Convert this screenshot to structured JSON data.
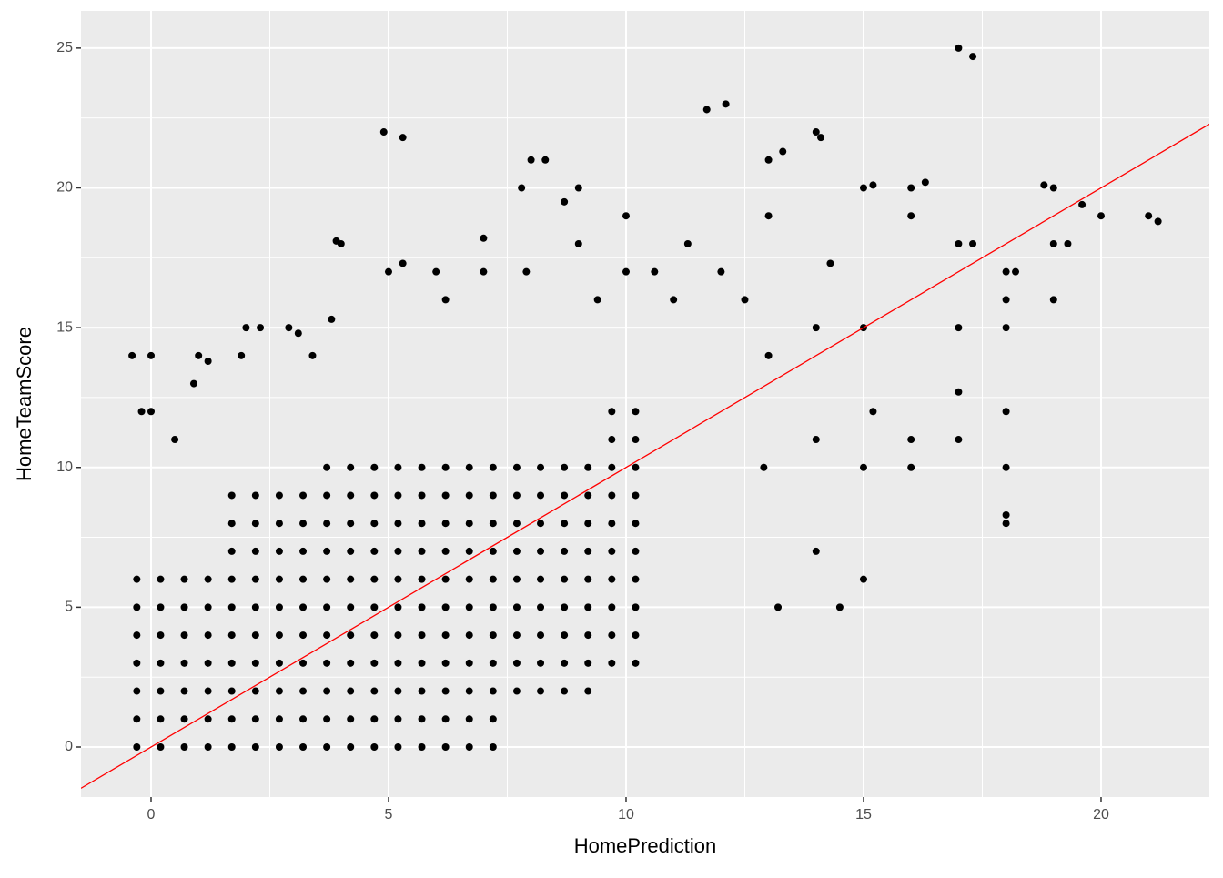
{
  "chart_data": {
    "type": "scatter",
    "x_label": "HomePrediction",
    "y_label": "HomeTeamScore",
    "xlim": [
      -1.475,
      22.28
    ],
    "ylim": [
      -1.79,
      26.33
    ],
    "xticks": [
      0,
      5,
      10,
      15,
      20
    ],
    "yticks": [
      0,
      5,
      10,
      15,
      20,
      25
    ],
    "x_minor_ticks": [
      2.5,
      7.5,
      12.5,
      17.5
    ],
    "y_minor_ticks": [
      2.5,
      7.5,
      12.5,
      17.5,
      22.5
    ],
    "grid": true,
    "color": "#000000",
    "reference_line": {
      "slope": 1,
      "intercept": 0,
      "color": "#ff0000"
    },
    "x": [
      -0.3,
      0.2,
      -0.3,
      0.2,
      -0.3,
      0.2,
      -0.3,
      0.2,
      -0.3,
      0.2,
      -0.3,
      0.2,
      -0.3,
      0.2,
      0.7,
      1.2,
      0.7,
      1.2,
      0.7,
      1.2,
      0.7,
      1.2,
      0.7,
      1.2,
      0.7,
      1.2,
      0.7,
      1.2,
      1.7,
      2.2,
      1.7,
      2.2,
      1.7,
      2.2,
      1.7,
      2.2,
      1.7,
      2.2,
      1.7,
      2.2,
      1.7,
      2.2,
      1.7,
      2.2,
      1.7,
      2.2,
      1.7,
      2.2,
      2.7,
      3.2,
      2.7,
      3.2,
      2.7,
      3.2,
      2.7,
      3.2,
      2.7,
      3.2,
      2.7,
      3.2,
      2.7,
      3.2,
      2.7,
      3.2,
      2.7,
      3.2,
      2.7,
      3.2,
      3.7,
      4.2,
      3.7,
      4.2,
      3.7,
      4.2,
      3.7,
      4.2,
      3.7,
      4.2,
      3.7,
      4.2,
      3.7,
      4.2,
      3.7,
      4.2,
      3.7,
      4.2,
      3.7,
      4.2,
      3.7,
      4.2,
      4.7,
      5.2,
      4.7,
      5.2,
      4.7,
      5.2,
      4.7,
      5.2,
      4.7,
      5.2,
      4.7,
      5.2,
      4.7,
      5.2,
      4.7,
      5.2,
      4.7,
      5.2,
      4.7,
      5.2,
      4.7,
      5.2,
      5.7,
      6.2,
      5.7,
      6.2,
      5.7,
      6.2,
      5.7,
      6.2,
      5.7,
      6.2,
      5.7,
      6.2,
      5.7,
      6.2,
      5.7,
      6.2,
      5.7,
      6.2,
      5.7,
      6.2,
      5.7,
      6.2,
      6.7,
      7.2,
      6.7,
      7.2,
      6.7,
      7.2,
      6.7,
      7.2,
      6.7,
      7.2,
      6.7,
      7.2,
      6.7,
      7.2,
      6.7,
      7.2,
      6.7,
      7.2,
      6.7,
      7.2,
      6.7,
      7.2,
      7.7,
      8.2,
      7.7,
      8.2,
      7.7,
      8.2,
      7.7,
      8.2,
      7.7,
      8.2,
      7.7,
      8.2,
      7.7,
      8.2,
      7.7,
      8.2,
      7.7,
      8.2,
      8.7,
      9.2,
      8.7,
      9.2,
      8.7,
      9.2,
      8.7,
      9.2,
      8.7,
      9.2,
      8.7,
      9.2,
      8.7,
      9.2,
      8.7,
      9.2,
      8.7,
      9.2,
      9.7,
      10.2,
      9.7,
      10.2,
      9.7,
      10.2,
      9.7,
      10.2,
      9.7,
      10.2,
      9.7,
      10.2,
      9.7,
      10.2,
      9.7,
      10.2,
      9.7,
      10.2,
      9.7,
      10.2,
      -0.4,
      0,
      -0.2,
      0,
      0.5,
      1,
      1.2,
      0.9,
      2,
      2.3,
      1.9,
      2.9,
      3.1,
      3.4,
      3.8,
      3.9,
      4,
      4.9,
      5.3,
      5,
      5.3,
      6,
      6.2,
      7,
      7,
      7.8,
      8,
      8.3,
      7.9,
      8.7,
      9,
      9,
      9.4,
      10,
      10,
      10.6,
      11,
      11.3,
      11.7,
      12.1,
      12,
      12.5,
      13,
      13,
      13.3,
      13,
      12.9,
      13.2,
      14,
      14.1,
      14.3,
      14,
      14,
      14,
      14.5,
      15,
      15.2,
      15,
      15.2,
      15,
      15,
      16,
      16.3,
      16,
      16,
      16,
      17,
      17.3,
      17,
      17,
      17,
      17.3,
      17,
      18,
      18.2,
      18,
      18,
      18,
      18,
      18,
      18,
      18.8,
      19,
      19,
      19,
      19.3,
      19.6,
      20,
      21,
      21.2
    ],
    "values": [
      0,
      0,
      1,
      1,
      2,
      2,
      3,
      3,
      4,
      4,
      5,
      5,
      6,
      6,
      0,
      0,
      1,
      1,
      2,
      2,
      3,
      3,
      4,
      4,
      5,
      5,
      6,
      6,
      0,
      0,
      1,
      1,
      2,
      2,
      3,
      3,
      4,
      4,
      5,
      5,
      6,
      6,
      7,
      7,
      8,
      8,
      9,
      9,
      0,
      0,
      1,
      1,
      2,
      2,
      3,
      3,
      4,
      4,
      5,
      5,
      6,
      6,
      7,
      7,
      8,
      8,
      9,
      9,
      0,
      0,
      1,
      1,
      2,
      2,
      3,
      3,
      4,
      4,
      5,
      5,
      6,
      6,
      7,
      7,
      8,
      8,
      9,
      9,
      10,
      10,
      0,
      0,
      1,
      1,
      2,
      2,
      3,
      3,
      4,
      4,
      5,
      5,
      6,
      6,
      7,
      7,
      8,
      8,
      9,
      9,
      10,
      10,
      0,
      0,
      1,
      1,
      2,
      2,
      3,
      3,
      4,
      4,
      5,
      5,
      6,
      6,
      7,
      7,
      8,
      8,
      9,
      9,
      10,
      10,
      0,
      0,
      1,
      1,
      2,
      2,
      3,
      3,
      4,
      4,
      5,
      5,
      6,
      6,
      7,
      7,
      8,
      8,
      9,
      9,
      10,
      10,
      2,
      2,
      3,
      3,
      4,
      4,
      5,
      5,
      6,
      6,
      7,
      7,
      8,
      8,
      9,
      9,
      10,
      10,
      2,
      2,
      3,
      3,
      4,
      4,
      5,
      5,
      6,
      6,
      7,
      7,
      8,
      8,
      9,
      9,
      10,
      10,
      3,
      3,
      4,
      4,
      5,
      5,
      6,
      6,
      7,
      7,
      8,
      8,
      9,
      9,
      10,
      10,
      11,
      11,
      12,
      12,
      14,
      14,
      12,
      12,
      11,
      14,
      13.8,
      13,
      15,
      15,
      14,
      15,
      14.8,
      14,
      15.3,
      18.1,
      18,
      22,
      21.8,
      17,
      17.3,
      17,
      16,
      18.2,
      17,
      20,
      21,
      21,
      17,
      19.5,
      20,
      18,
      16,
      19,
      17,
      17,
      16,
      18,
      22.8,
      23,
      17,
      16,
      19,
      21,
      21.3,
      14,
      10,
      5,
      22,
      21.8,
      17.3,
      15,
      11,
      7,
      5,
      20,
      20.1,
      15,
      12,
      10,
      6,
      20,
      20.2,
      19,
      11,
      10,
      25,
      24.7,
      18,
      15,
      12.7,
      18,
      11,
      17,
      17,
      16,
      15,
      12,
      10,
      8.3,
      8,
      20.1,
      20,
      18,
      16,
      18,
      19.4,
      19,
      19,
      18.8
    ]
  }
}
